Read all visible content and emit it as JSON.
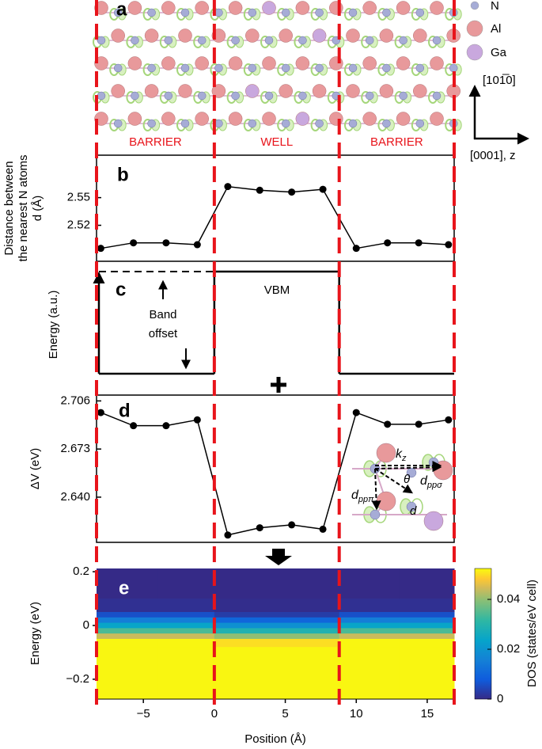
{
  "figure": {
    "panel_labels": [
      "a",
      "b",
      "c",
      "d",
      "e"
    ],
    "regions": [
      "BARRIER",
      "WELL",
      "BARRIER"
    ],
    "interfaces": [
      -8.3,
      0,
      8.8,
      16.9
    ],
    "atoms": [
      {
        "name": "N",
        "color": "#a6acd6"
      },
      {
        "name": "Al",
        "color": "#e8999b"
      },
      {
        "name": "Ga",
        "color": "#c9a8de"
      }
    ],
    "directions": [
      "[101̅0]",
      "[0001], z"
    ],
    "panel_c": {
      "y_label": "Energy (a.u.)",
      "vbm": "VBM",
      "band_offset": [
        "Band",
        "offset"
      ]
    },
    "inset_labels": {
      "k": {
        "main": "k",
        "sub": "z"
      },
      "theta": "θ",
      "d_sigma": {
        "main": "d",
        "sub": "ppσ"
      },
      "d_pi": {
        "main": "d",
        "sub": "ppπ"
      },
      "d": "d"
    }
  },
  "chart_data": [
    {
      "type": "line",
      "y_label": [
        "Distance between",
        "the nearest N atoms",
        "d (Å)"
      ],
      "x": [
        -8.0,
        -5.7,
        -3.4,
        -1.2,
        0.95,
        3.2,
        5.45,
        7.65,
        10.0,
        12.2,
        14.4,
        16.5
      ],
      "values": [
        2.495,
        2.501,
        2.501,
        2.499,
        2.562,
        2.558,
        2.556,
        2.559,
        2.495,
        2.501,
        2.501,
        2.499
      ],
      "color": "#000000",
      "xlim": [
        -8.3,
        16.9
      ],
      "ylim": [
        2.481,
        2.596
      ],
      "yticks": [
        2.52,
        2.55
      ]
    },
    {
      "type": "line",
      "y_label": [
        "ΔV (eV)"
      ],
      "x": [
        -8.0,
        -5.7,
        -3.4,
        -1.2,
        0.95,
        3.2,
        5.45,
        7.65,
        10.0,
        12.2,
        14.4,
        16.5
      ],
      "values": [
        2.698,
        2.689,
        2.689,
        2.693,
        2.614,
        2.619,
        2.621,
        2.618,
        2.698,
        2.69,
        2.69,
        2.693
      ],
      "color": "#000000",
      "xlim": [
        -8.3,
        16.9
      ],
      "ylim": [
        2.609,
        2.71
      ],
      "yticks": [
        {
          "value": 2.64,
          "label": "2.640"
        },
        2.673,
        2.706
      ]
    },
    {
      "type": "heatmap",
      "y_label": "Energy (eV)",
      "x_label": "Position (Å)",
      "colorbar_label": "DOS (states/eV cell)",
      "xbins": [
        -8.3,
        -4,
        0,
        4,
        8.8,
        13,
        16.9
      ],
      "ybins": [
        0.212,
        0.1,
        0.05,
        0.03,
        0.01,
        -0.01,
        -0.03,
        -0.05,
        -0.08,
        -0.274
      ],
      "z": [
        [
          0,
          0,
          0,
          0,
          0,
          0
        ],
        [
          0.001,
          0.001,
          0.0005,
          0.0005,
          0.001,
          0.001
        ],
        [
          0.006,
          0.006,
          0.003,
          0.003,
          0.006,
          0.006
        ],
        [
          0.015,
          0.015,
          0.01,
          0.01,
          0.015,
          0.015
        ],
        [
          0.024,
          0.024,
          0.019,
          0.019,
          0.024,
          0.024
        ],
        [
          0.034,
          0.034,
          0.029,
          0.029,
          0.034,
          0.034
        ],
        [
          0.044,
          0.044,
          0.04,
          0.04,
          0.044,
          0.044
        ],
        [
          0.052,
          0.052,
          0.05,
          0.05,
          0.052,
          0.052
        ],
        [
          0.052,
          0.052,
          0.052,
          0.052,
          0.052,
          0.052
        ]
      ],
      "xlim": [
        -8.3,
        16.9
      ],
      "ylim": [
        -0.274,
        0.212
      ],
      "xticks": [
        {
          "value": -5,
          "label": "−5"
        },
        0,
        5,
        10,
        15
      ],
      "yticks": [
        {
          "value": -0.2,
          "label": "−0.2"
        },
        0,
        0.2
      ],
      "clim": [
        0,
        0.0524
      ],
      "colorbar_ticks": [
        0,
        0.02,
        0.04
      ]
    }
  ]
}
